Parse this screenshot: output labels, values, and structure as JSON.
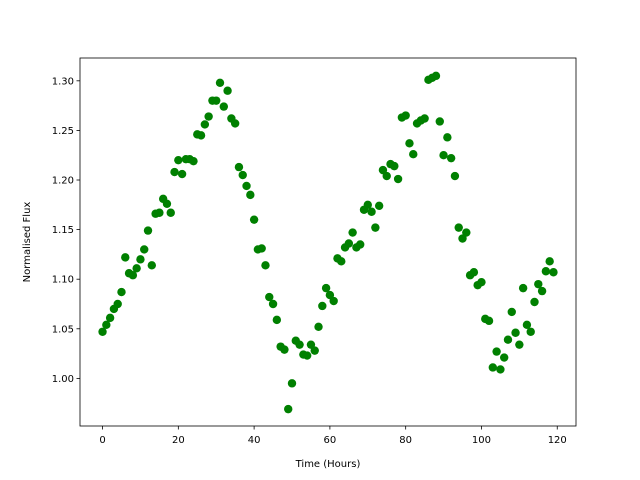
{
  "chart_data": {
    "type": "scatter",
    "xlabel": "Time (Hours)",
    "ylabel": "Normalised Flux",
    "color": "#008000",
    "x": [
      0,
      1,
      2,
      3,
      4,
      5,
      6,
      7,
      8,
      9,
      10,
      11,
      12,
      13,
      14,
      15,
      16,
      17,
      18,
      19,
      20,
      21,
      22,
      23,
      24,
      25,
      26,
      27,
      28,
      29,
      30,
      31,
      32,
      33,
      34,
      35,
      36,
      37,
      38,
      39,
      40,
      41,
      42,
      43,
      44,
      45,
      46,
      47,
      48,
      49,
      50,
      51,
      52,
      53,
      54,
      55,
      56,
      57,
      58,
      59,
      60,
      61,
      62,
      63,
      64,
      65,
      66,
      67,
      68,
      69,
      70,
      71,
      72,
      73,
      74,
      75,
      76,
      77,
      78,
      79,
      80,
      81,
      82,
      83,
      84,
      85,
      86,
      87,
      88,
      89,
      90,
      91,
      92,
      93,
      94,
      95,
      96,
      97,
      98,
      99,
      100,
      101,
      102,
      103,
      104,
      105,
      106,
      107,
      108,
      109,
      110,
      111,
      112,
      113,
      114,
      115,
      116,
      117,
      118,
      119
    ],
    "y": [
      1.047,
      1.054,
      1.061,
      1.07,
      1.075,
      1.087,
      1.122,
      1.106,
      1.104,
      1.111,
      1.12,
      1.13,
      1.149,
      1.114,
      1.166,
      1.167,
      1.181,
      1.176,
      1.167,
      1.208,
      1.22,
      1.206,
      1.221,
      1.221,
      1.219,
      1.246,
      1.245,
      1.256,
      1.264,
      1.28,
      1.28,
      1.298,
      1.274,
      1.29,
      1.262,
      1.257,
      1.213,
      1.205,
      1.194,
      1.185,
      1.16,
      1.13,
      1.131,
      1.114,
      1.082,
      1.075,
      1.059,
      1.032,
      1.029,
      0.969,
      0.995,
      1.038,
      1.034,
      1.024,
      1.023,
      1.034,
      1.028,
      1.052,
      1.073,
      1.091,
      1.084,
      1.078,
      1.121,
      1.118,
      1.132,
      1.136,
      1.147,
      1.132,
      1.135,
      1.17,
      1.175,
      1.168,
      1.152,
      1.174,
      1.21,
      1.204,
      1.216,
      1.214,
      1.201,
      1.263,
      1.265,
      1.237,
      1.226,
      1.257,
      1.26,
      1.262,
      1.301,
      1.303,
      1.305,
      1.259,
      1.225,
      1.243,
      1.222,
      1.204,
      1.152,
      1.141,
      1.147,
      1.104,
      1.107,
      1.094,
      1.097,
      1.06,
      1.058,
      1.011,
      1.027,
      1.009,
      1.021,
      1.039,
      1.067,
      1.046,
      1.034,
      1.091,
      1.054,
      1.047,
      1.077,
      1.095,
      1.088,
      1.108,
      1.118,
      1.107
    ],
    "xlim": [
      -5.95,
      124.95
    ],
    "ylim": [
      0.952,
      1.323
    ],
    "xticks": [
      0,
      20,
      40,
      60,
      80,
      100,
      120
    ],
    "yticks": [
      {
        "value": 1.0,
        "label": "1.00"
      },
      {
        "value": 1.05,
        "label": "1.05"
      },
      {
        "value": 1.1,
        "label": "1.10"
      },
      {
        "value": 1.15,
        "label": "1.15"
      },
      {
        "value": 1.2,
        "label": "1.20"
      },
      {
        "value": 1.25,
        "label": "1.25"
      },
      {
        "value": 1.3,
        "label": "1.30"
      }
    ],
    "grid": false
  }
}
